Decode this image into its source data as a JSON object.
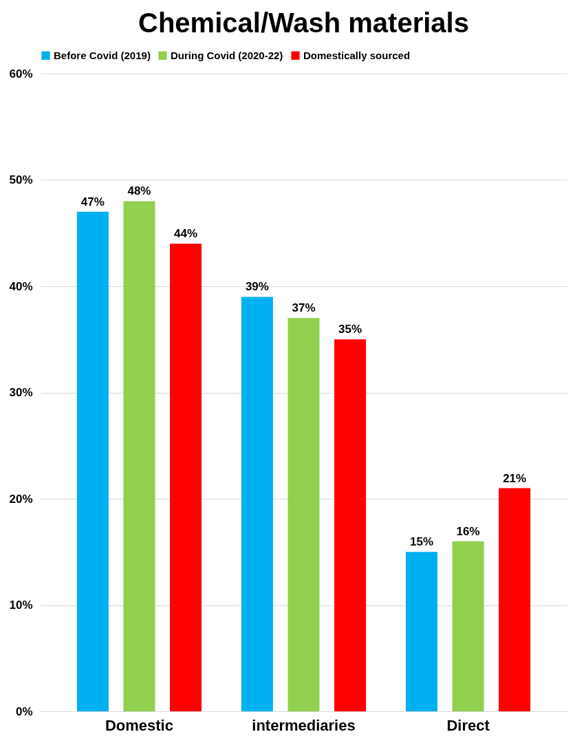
{
  "chart_data": {
    "type": "bar",
    "title": "Chemical/Wash materials",
    "categories": [
      "Domestic",
      "intermediaries",
      "Direct"
    ],
    "series": [
      {
        "name": "Before Covid (2019)",
        "color": "#00b0f0",
        "values": [
          47,
          39,
          15
        ],
        "value_labels": [
          "47%",
          "39%",
          "15%"
        ]
      },
      {
        "name": "During Covid (2020-22)",
        "color": "#92d050",
        "values": [
          48,
          37,
          16
        ],
        "value_labels": [
          "48%",
          "37%",
          "16%"
        ]
      },
      {
        "name": "Domestically sourced",
        "color": "#ff0000",
        "values": [
          44,
          35,
          21
        ],
        "value_labels": [
          "44%",
          "35%",
          "21%"
        ]
      }
    ],
    "ylim": [
      0,
      60
    ],
    "yticks": [
      {
        "value": 0,
        "label": "0%"
      },
      {
        "value": 10,
        "label": "10%"
      },
      {
        "value": 20,
        "label": "20%"
      },
      {
        "value": 30,
        "label": "30%"
      },
      {
        "value": 40,
        "label": "40%"
      },
      {
        "value": 50,
        "label": "50%"
      },
      {
        "value": 60,
        "label": "60%"
      }
    ],
    "grid": "y",
    "legend": "top"
  }
}
